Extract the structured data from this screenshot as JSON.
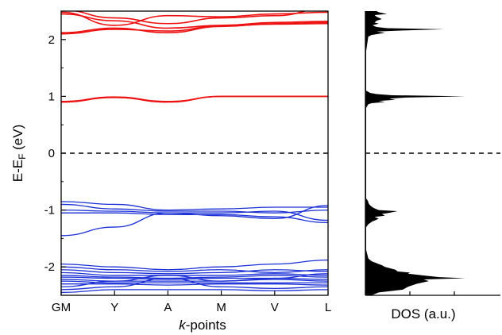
{
  "chart_data": [
    {
      "type": "line",
      "panel": "band-structure",
      "ylabel": {
        "main": "E-E",
        "sub": "F",
        "unit": " (eV)"
      },
      "xlabel": {
        "italic": "k",
        "rest": "-points"
      },
      "x_ticks": [
        "GM",
        "Y",
        "A",
        "M",
        "V",
        "L"
      ],
      "x_tick_positions": [
        0,
        1,
        2,
        3,
        4,
        5
      ],
      "xlim": [
        0,
        5
      ],
      "ylim": [
        -2.5,
        2.5
      ],
      "y_ticks": [
        -2,
        -1,
        0,
        1,
        2
      ],
      "fermi_level": 0,
      "colors": {
        "conduction": "#ee1111",
        "valence": "#1a2fd6",
        "fermi": "#000000"
      },
      "series": [
        {
          "band": "conduction",
          "values": [
            2.12,
            2.2,
            2.12,
            2.23,
            2.28,
            2.3
          ]
        },
        {
          "band": "conduction",
          "values": [
            2.1,
            2.18,
            2.15,
            2.24,
            2.27,
            2.28
          ]
        },
        {
          "band": "conduction",
          "values": [
            2.45,
            2.33,
            2.2,
            2.25,
            2.3,
            2.32
          ]
        },
        {
          "band": "conduction",
          "values": [
            2.48,
            2.25,
            2.42,
            2.4,
            2.45,
            2.48
          ]
        },
        {
          "band": "conduction",
          "values": [
            2.52,
            2.38,
            2.28,
            2.38,
            2.42,
            2.55
          ]
        },
        {
          "band": "conduction",
          "values": [
            0.9,
            0.98,
            0.9,
            1.0,
            1.0,
            1.0
          ]
        },
        {
          "band": "conduction",
          "values": [
            0.91,
            0.99,
            0.91,
            1.0,
            1.0,
            1.0
          ]
        },
        {
          "band": "valence",
          "values": [
            -0.85,
            -0.9,
            -1.0,
            -0.98,
            -0.95,
            -0.95
          ]
        },
        {
          "band": "valence",
          "values": [
            -0.9,
            -0.98,
            -1.02,
            -1.02,
            -1.05,
            -1.0
          ]
        },
        {
          "band": "valence",
          "values": [
            -1.0,
            -1.02,
            -1.05,
            -1.05,
            -1.02,
            -1.18
          ]
        },
        {
          "band": "valence",
          "values": [
            -1.05,
            -1.05,
            -1.08,
            -1.08,
            -1.12,
            -1.22
          ]
        },
        {
          "band": "valence",
          "values": [
            -1.45,
            -1.3,
            -1.05,
            -1.1,
            -1.15,
            -0.92
          ]
        },
        {
          "band": "valence",
          "values": [
            -1.95,
            -2.0,
            -2.05,
            -2.0,
            -1.95,
            -1.88
          ]
        },
        {
          "band": "valence",
          "values": [
            -2.0,
            -2.05,
            -2.08,
            -2.05,
            -2.1,
            -2.05
          ]
        },
        {
          "band": "valence",
          "values": [
            -2.05,
            -2.1,
            -2.12,
            -2.1,
            -2.05,
            -2.08
          ]
        },
        {
          "band": "valence",
          "values": [
            -2.1,
            -2.15,
            -2.15,
            -2.15,
            -2.12,
            -2.15
          ]
        },
        {
          "band": "valence",
          "values": [
            -2.15,
            -2.18,
            -2.2,
            -2.18,
            -2.15,
            -2.18
          ]
        },
        {
          "band": "valence",
          "values": [
            -2.18,
            -2.2,
            -2.22,
            -2.2,
            -2.2,
            -2.22
          ]
        },
        {
          "band": "valence",
          "values": [
            -2.22,
            -2.25,
            -2.25,
            -2.25,
            -2.22,
            -2.25
          ]
        },
        {
          "band": "valence",
          "values": [
            -2.25,
            -2.28,
            -2.28,
            -2.28,
            -2.28,
            -2.28
          ]
        },
        {
          "band": "valence",
          "values": [
            -2.3,
            -2.3,
            -2.32,
            -2.3,
            -2.3,
            -2.32
          ]
        },
        {
          "band": "valence",
          "values": [
            -2.4,
            -2.35,
            -2.2,
            -2.35,
            -2.38,
            -2.35
          ]
        },
        {
          "band": "valence",
          "values": [
            -2.45,
            -2.4,
            -2.4,
            -2.4,
            -2.42,
            -2.4
          ]
        },
        {
          "band": "valence",
          "values": [
            -2.35,
            -2.25,
            -2.15,
            -2.25,
            -2.2,
            -2.12
          ]
        }
      ]
    },
    {
      "type": "area",
      "panel": "dos",
      "xlabel": "DOS (a.u.)",
      "ylim": [
        -2.5,
        2.5
      ],
      "fermi_level": 0,
      "colors": {
        "fill": "#000000"
      },
      "energy": [
        -2.5,
        -2.45,
        -2.4,
        -2.35,
        -2.3,
        -2.25,
        -2.22,
        -2.2,
        -2.18,
        -2.15,
        -2.12,
        -2.1,
        -2.08,
        -2.05,
        -2.02,
        -2.0,
        -1.97,
        -1.95,
        -1.92,
        -1.9,
        -1.85,
        -1.7,
        -1.5,
        -1.3,
        -1.25,
        -1.2,
        -1.17,
        -1.15,
        -1.12,
        -1.1,
        -1.07,
        -1.05,
        -1.02,
        -1.0,
        -0.97,
        -0.95,
        -0.92,
        -0.9,
        -0.87,
        -0.85,
        -0.82,
        -0.8,
        -0.6,
        0.0,
        0.8,
        0.86,
        0.88,
        0.9,
        0.92,
        0.94,
        0.96,
        0.98,
        1.0,
        1.02,
        1.04,
        1.06,
        1.1,
        1.8,
        2.05,
        2.08,
        2.1,
        2.12,
        2.14,
        2.16,
        2.18,
        2.2,
        2.22,
        2.25,
        2.28,
        2.3,
        2.33,
        2.36,
        2.4,
        2.43,
        2.45,
        2.48,
        2.5
      ],
      "values": [
        0.05,
        0.12,
        0.35,
        0.4,
        0.48,
        0.6,
        0.55,
        0.95,
        0.7,
        0.55,
        0.4,
        0.42,
        0.3,
        0.28,
        0.22,
        0.18,
        0.15,
        0.12,
        0.08,
        0.05,
        0.02,
        0.0,
        0.0,
        0.0,
        0.02,
        0.06,
        0.1,
        0.12,
        0.08,
        0.18,
        0.15,
        0.22,
        0.3,
        0.12,
        0.08,
        0.06,
        0.04,
        0.03,
        0.02,
        0.02,
        0.01,
        0.0,
        0.0,
        0.0,
        0.0,
        0.02,
        0.05,
        0.18,
        0.12,
        0.28,
        0.22,
        0.38,
        0.95,
        0.25,
        0.1,
        0.04,
        0.0,
        0.0,
        0.02,
        0.05,
        0.12,
        0.18,
        0.1,
        0.35,
        0.75,
        0.2,
        0.1,
        0.06,
        0.12,
        0.08,
        0.1,
        0.15,
        0.1,
        0.08,
        0.2,
        0.12,
        0.1
      ]
    }
  ]
}
